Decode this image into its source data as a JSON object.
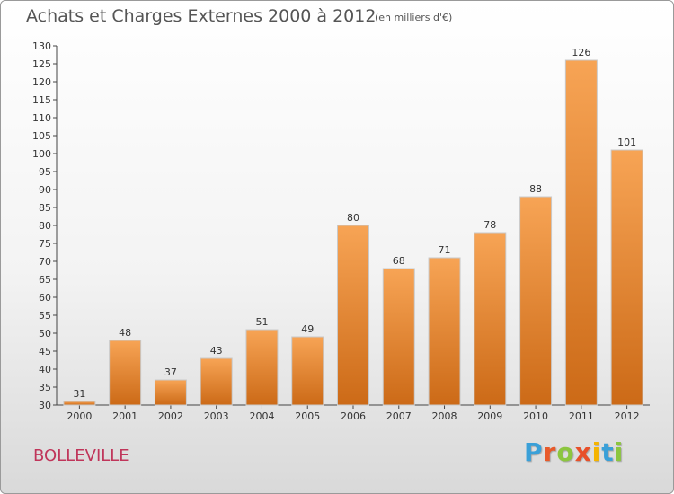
{
  "header": {
    "title": "Achats et Charges Externes 2000 à 2012",
    "subtitle": "(en milliers d'€)"
  },
  "footer": {
    "commune": "BOLLEVILLE",
    "logo_letters": [
      "P",
      "r",
      "o",
      "x",
      "i",
      "t",
      "i"
    ],
    "logo_colors": [
      "#3aa0d8",
      "#e85a2a",
      "#8cc63f",
      "#e8502a",
      "#f5b400",
      "#3aa0d8",
      "#8cc63f"
    ]
  },
  "chart_data": {
    "type": "bar",
    "title": "Achats et Charges Externes 2000 à 2012",
    "subtitle": "(en milliers d'€)",
    "categories": [
      "2000",
      "2001",
      "2002",
      "2003",
      "2004",
      "2005",
      "2006",
      "2007",
      "2008",
      "2009",
      "2010",
      "2011",
      "2012"
    ],
    "values": [
      31,
      48,
      37,
      43,
      51,
      49,
      80,
      68,
      71,
      78,
      88,
      126,
      101
    ],
    "ylim": [
      30,
      130
    ],
    "yticks": [
      30,
      35,
      40,
      45,
      50,
      55,
      60,
      65,
      70,
      75,
      80,
      85,
      90,
      95,
      100,
      105,
      110,
      115,
      120,
      125,
      130
    ],
    "grid": false,
    "bar_color": "#f0943c",
    "xlabel": "",
    "ylabel": ""
  }
}
